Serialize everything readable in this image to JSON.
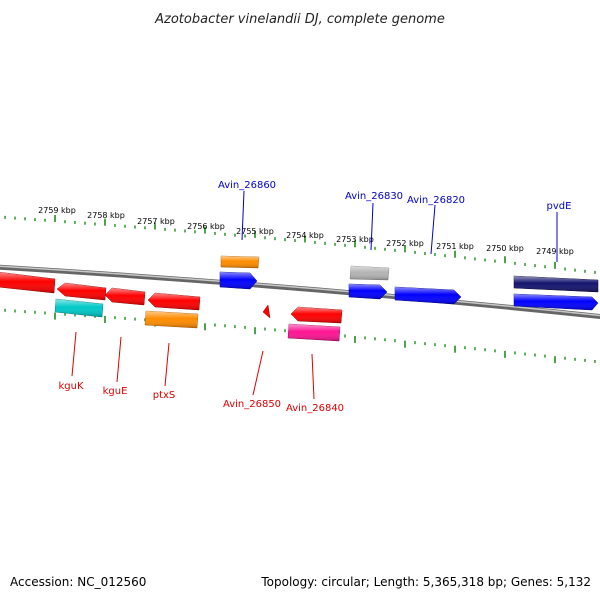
{
  "title": "Azotobacter vinelandii DJ, complete genome",
  "footer": {
    "accession": "Accession: NC_012560",
    "summary": "Topology: circular; Length: 5,365,318 bp; Genes: 5,132"
  },
  "scale": {
    "unit": "kbp",
    "tick_labels": [
      "2759 kbp",
      "2758 kbp",
      "2757 kbp",
      "2756 kbp",
      "2755 kbp",
      "2754 kbp",
      "2753 kbp",
      "2752 kbp",
      "2751 kbp",
      "2750 kbp",
      "2749 kbp"
    ]
  },
  "colors": {
    "backbone": "#888888",
    "ticks": "#228b22",
    "forward_label": "#0000cc",
    "reverse_label": "#dd0000",
    "red": "#ff0000",
    "blue": "#0000ff",
    "navy": "#14146e",
    "orange": "#ff8c00",
    "cyan": "#00c8c8",
    "pink": "#ff1493",
    "gray": "#b4b4b4"
  },
  "labels": {
    "top": [
      "Avin_26860",
      "Avin_26830",
      "Avin_26820",
      "pvdE"
    ],
    "bottom": [
      "kguK",
      "kguE",
      "ptxS",
      "Avin_26850",
      "Avin_26840"
    ]
  }
}
